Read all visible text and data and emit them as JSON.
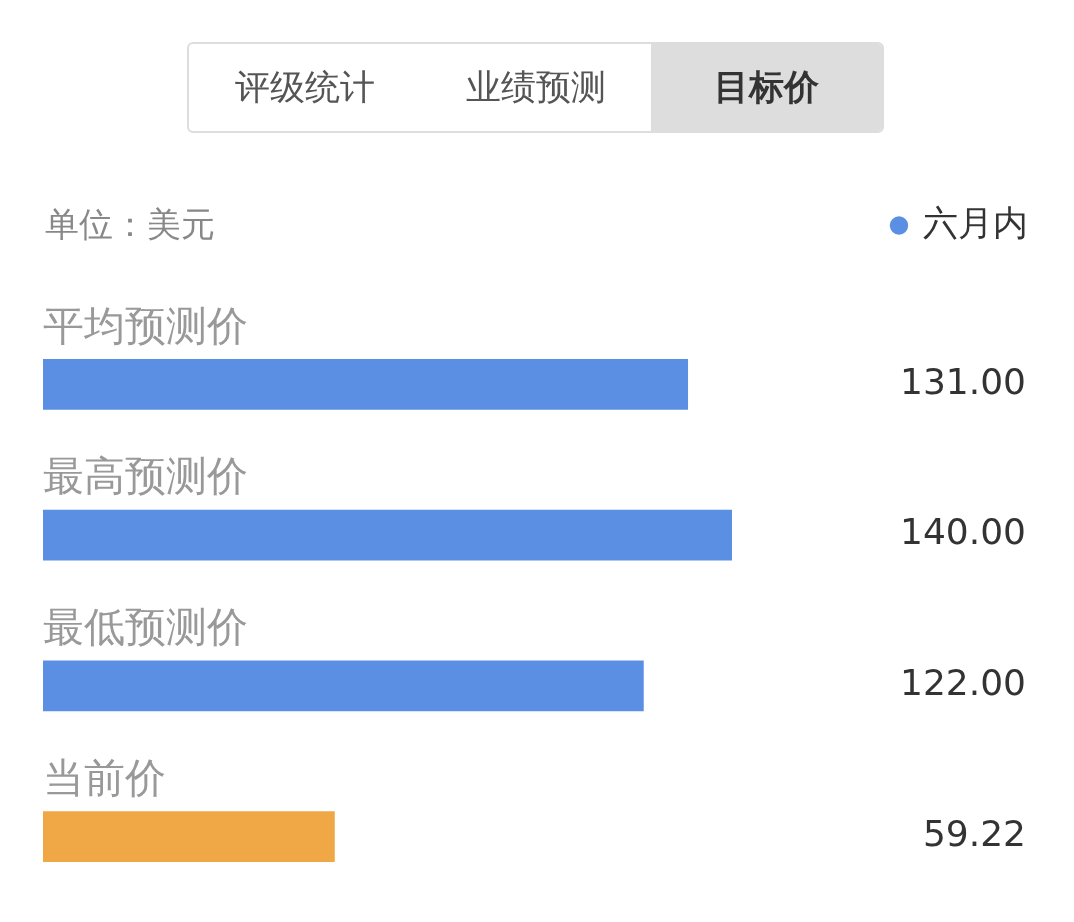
{
  "chart_data": {
    "type": "bar",
    "orientation": "horizontal",
    "title": "目标价",
    "subtitle": "单位：美元",
    "annotations": [
      "评级统计",
      "业绩预测"
    ],
    "categories": [
      "平均预测价",
      "最高预测价",
      "最低预测价",
      "当前价"
    ],
    "series": [
      {
        "name": "六月内",
        "color": "#5a8fe3",
        "colors": [
          "#5a8fe3",
          "#5a8fe3",
          "#5a8fe3",
          "#efa845"
        ],
        "values": [
          131,
          140,
          122,
          59.22
        ],
        "value_labels": [
          "131.00",
          "140.00",
          "122.00",
          "59.22"
        ]
      }
    ],
    "legend": "top right"
  }
}
